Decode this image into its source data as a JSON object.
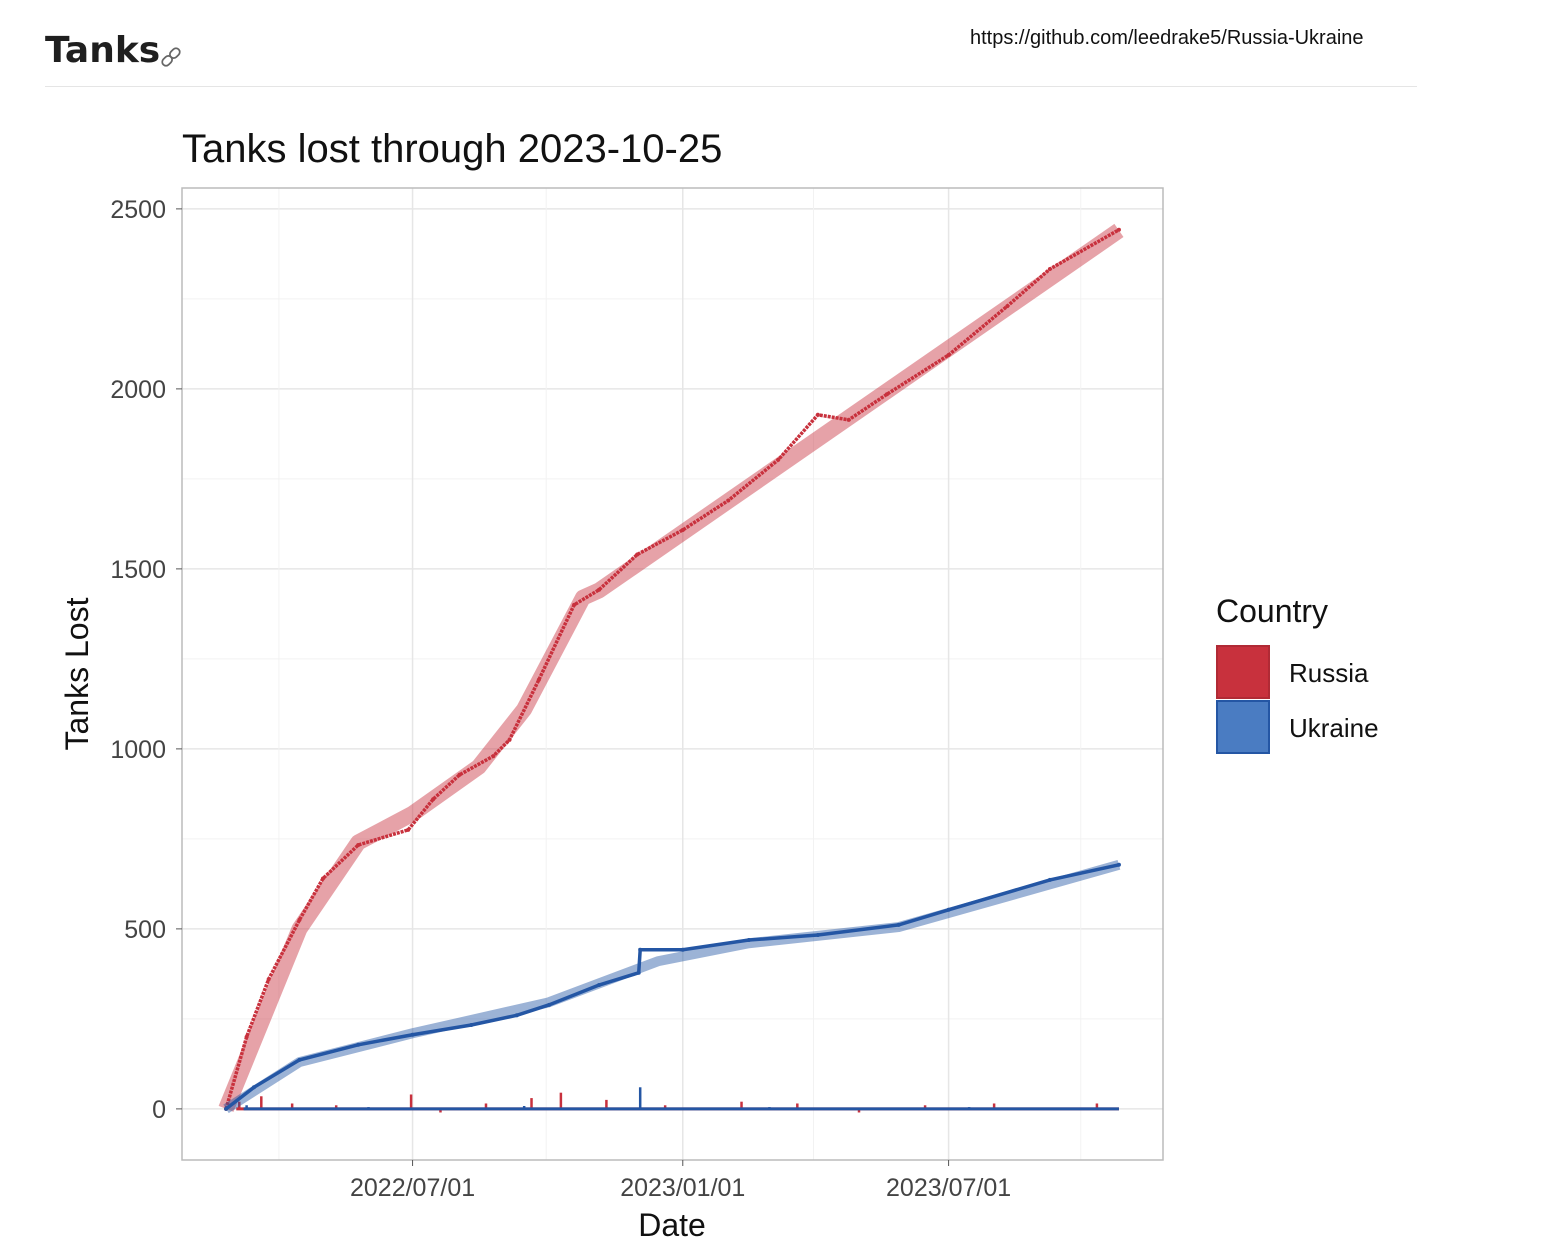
{
  "header": {
    "title": "Tanks",
    "link_icon": "link-icon",
    "source_url": "https://github.com/leedrake5/Russia-Ukraine"
  },
  "chart_data": {
    "type": "line",
    "title": "Tanks lost through 2023-10-25",
    "xlabel": "Date",
    "ylabel": "Tanks Lost",
    "xlim": [
      "2022-01-25",
      "2023-11-24"
    ],
    "ylim": [
      -142,
      2558
    ],
    "x_ticks": [
      "2022/07/01",
      "2023/01/01",
      "2023/07/01"
    ],
    "x_tick_dates": [
      "2022-07-01",
      "2023-01-01",
      "2023-07-01"
    ],
    "y_ticks": [
      0,
      500,
      1000,
      1500,
      2000,
      2500
    ],
    "grid": true,
    "legend": {
      "title": "Country",
      "placement": "right"
    },
    "series": [
      {
        "name": "Russia",
        "color": "#c8313d",
        "cumulative": [
          [
            "2022-02-24",
            0
          ],
          [
            "2022-03-10",
            200
          ],
          [
            "2022-03-25",
            360
          ],
          [
            "2022-04-15",
            525
          ],
          [
            "2022-05-01",
            640
          ],
          [
            "2022-05-25",
            733
          ],
          [
            "2022-06-28",
            775
          ],
          [
            "2022-07-15",
            860
          ],
          [
            "2022-08-02",
            928
          ],
          [
            "2022-08-25",
            980
          ],
          [
            "2022-09-05",
            1025
          ],
          [
            "2022-09-25",
            1192
          ],
          [
            "2022-10-19",
            1400
          ],
          [
            "2022-11-05",
            1442
          ],
          [
            "2022-12-01",
            1540
          ],
          [
            "2023-01-01",
            1608
          ],
          [
            "2023-02-01",
            1690
          ],
          [
            "2023-03-07",
            1803
          ],
          [
            "2023-04-03",
            1928
          ],
          [
            "2023-04-24",
            1914
          ],
          [
            "2023-05-20",
            1985
          ],
          [
            "2023-07-01",
            2094
          ],
          [
            "2023-08-10",
            2230
          ],
          [
            "2023-09-08",
            2333
          ],
          [
            "2023-10-25",
            2442
          ]
        ],
        "trend": [
          [
            "2022-02-24",
            0
          ],
          [
            "2022-04-15",
            500
          ],
          [
            "2022-05-25",
            740
          ],
          [
            "2022-07-01",
            820
          ],
          [
            "2022-08-15",
            950
          ],
          [
            "2022-09-15",
            1110
          ],
          [
            "2022-10-25",
            1420
          ],
          [
            "2022-11-05",
            1440
          ],
          [
            "2023-10-25",
            2440
          ]
        ],
        "daily": [
          [
            "2022-03-05",
            20
          ],
          [
            "2022-03-20",
            35
          ],
          [
            "2022-04-10",
            15
          ],
          [
            "2022-05-10",
            10
          ],
          [
            "2022-06-30",
            40
          ],
          [
            "2022-07-20",
            -10
          ],
          [
            "2022-08-20",
            15
          ],
          [
            "2022-09-20",
            30
          ],
          [
            "2022-10-10",
            45
          ],
          [
            "2022-11-10",
            25
          ],
          [
            "2022-12-20",
            10
          ],
          [
            "2023-02-10",
            20
          ],
          [
            "2023-03-20",
            15
          ],
          [
            "2023-05-01",
            -10
          ],
          [
            "2023-06-15",
            10
          ],
          [
            "2023-08-01",
            15
          ],
          [
            "2023-10-10",
            15
          ]
        ]
      },
      {
        "name": "Ukraine",
        "color": "#2456a4",
        "cumulative": [
          [
            "2022-02-24",
            0
          ],
          [
            "2022-03-15",
            60
          ],
          [
            "2022-04-15",
            136
          ],
          [
            "2022-05-25",
            178
          ],
          [
            "2022-07-01",
            206
          ],
          [
            "2022-08-10",
            233
          ],
          [
            "2022-09-10",
            260
          ],
          [
            "2022-10-02",
            289
          ],
          [
            "2022-11-05",
            344
          ],
          [
            "2022-12-02",
            378
          ],
          [
            "2022-12-03",
            442
          ],
          [
            "2023-01-01",
            442
          ],
          [
            "2023-02-15",
            469
          ],
          [
            "2023-04-03",
            483
          ],
          [
            "2023-05-28",
            511
          ],
          [
            "2023-07-01",
            553
          ],
          [
            "2023-09-08",
            636
          ],
          [
            "2023-10-25",
            678
          ]
        ],
        "trend": [
          [
            "2022-02-24",
            0
          ],
          [
            "2022-04-15",
            130
          ],
          [
            "2022-07-01",
            210
          ],
          [
            "2022-10-01",
            295
          ],
          [
            "2022-12-15",
            410
          ],
          [
            "2023-02-15",
            460
          ],
          [
            "2023-05-28",
            505
          ],
          [
            "2023-10-25",
            678
          ]
        ],
        "daily": [
          [
            "2022-03-10",
            10
          ],
          [
            "2022-06-01",
            5
          ],
          [
            "2022-09-15",
            8
          ],
          [
            "2022-12-03",
            60
          ],
          [
            "2023-03-01",
            5
          ],
          [
            "2023-07-15",
            5
          ]
        ]
      }
    ]
  }
}
